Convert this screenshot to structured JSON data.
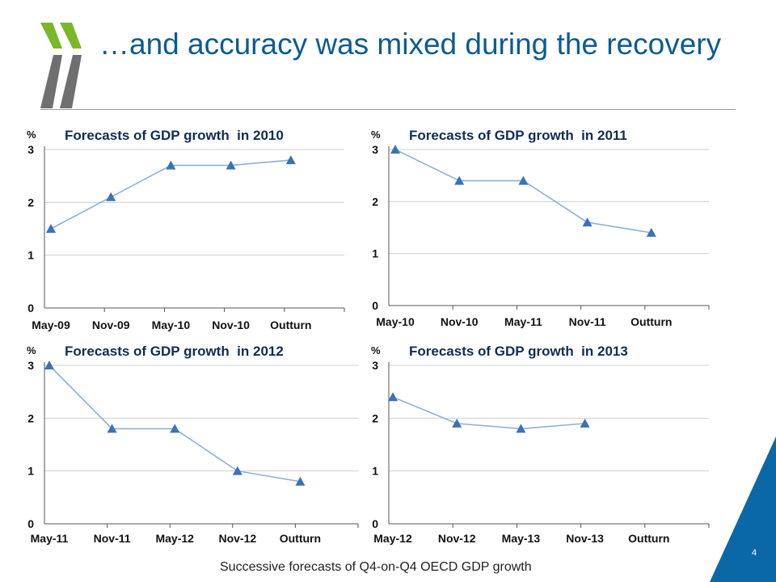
{
  "slide": {
    "title": "…and accuracy was mixed during the recovery",
    "caption": "Successive forecasts of Q4-on-Q4 OECD GDP growth",
    "page_number": "4"
  },
  "colors": {
    "title": "#0d5c8f",
    "accent_green": "#7ab829",
    "accent_grey": "#6f6f6f",
    "corner_blue": "#0b68a6",
    "series_line": "#8fb0d8",
    "marker": "#3a72b8",
    "gridline": "#cfcfcf"
  },
  "icons": {
    "logo": "double-chevron-logo"
  },
  "chart_data": [
    {
      "type": "line",
      "title": "Forecasts of GDP growth  in 2010",
      "ylabel": "%",
      "categories": [
        "May-09",
        "Nov-09",
        "May-10",
        "Nov-10",
        "Outturn"
      ],
      "values": [
        1.5,
        2.1,
        2.7,
        2.7,
        2.8
      ],
      "ylim": [
        0,
        3
      ],
      "yticks": [
        "0",
        "1",
        "2",
        "3"
      ],
      "grid": true
    },
    {
      "type": "line",
      "title": "Forecasts of GDP growth  in 2011",
      "ylabel": "%",
      "categories": [
        "May-10",
        "Nov-10",
        "May-11",
        "Nov-11",
        "Outturn"
      ],
      "values": [
        3.0,
        2.4,
        2.4,
        1.6,
        1.4
      ],
      "ylim": [
        0,
        3
      ],
      "yticks": [
        "0",
        "1",
        "2",
        "3"
      ],
      "grid": true
    },
    {
      "type": "line",
      "title": "Forecasts of GDP growth  in 2012",
      "ylabel": "%",
      "categories": [
        "May-11",
        "Nov-11",
        "May-12",
        "Nov-12",
        "Outturn"
      ],
      "values": [
        3.0,
        1.8,
        1.8,
        1.0,
        0.8
      ],
      "ylim": [
        0,
        3
      ],
      "yticks": [
        "0",
        "1",
        "2",
        "3"
      ],
      "grid": true
    },
    {
      "type": "line",
      "title": "Forecasts of GDP growth  in 2013",
      "ylabel": "%",
      "categories": [
        "May-12",
        "Nov-12",
        "May-13",
        "Nov-13",
        "Outturn"
      ],
      "values": [
        2.4,
        1.9,
        1.8,
        1.9,
        null
      ],
      "ylim": [
        0,
        3
      ],
      "yticks": [
        "0",
        "1",
        "2",
        "3"
      ],
      "grid": true
    }
  ]
}
